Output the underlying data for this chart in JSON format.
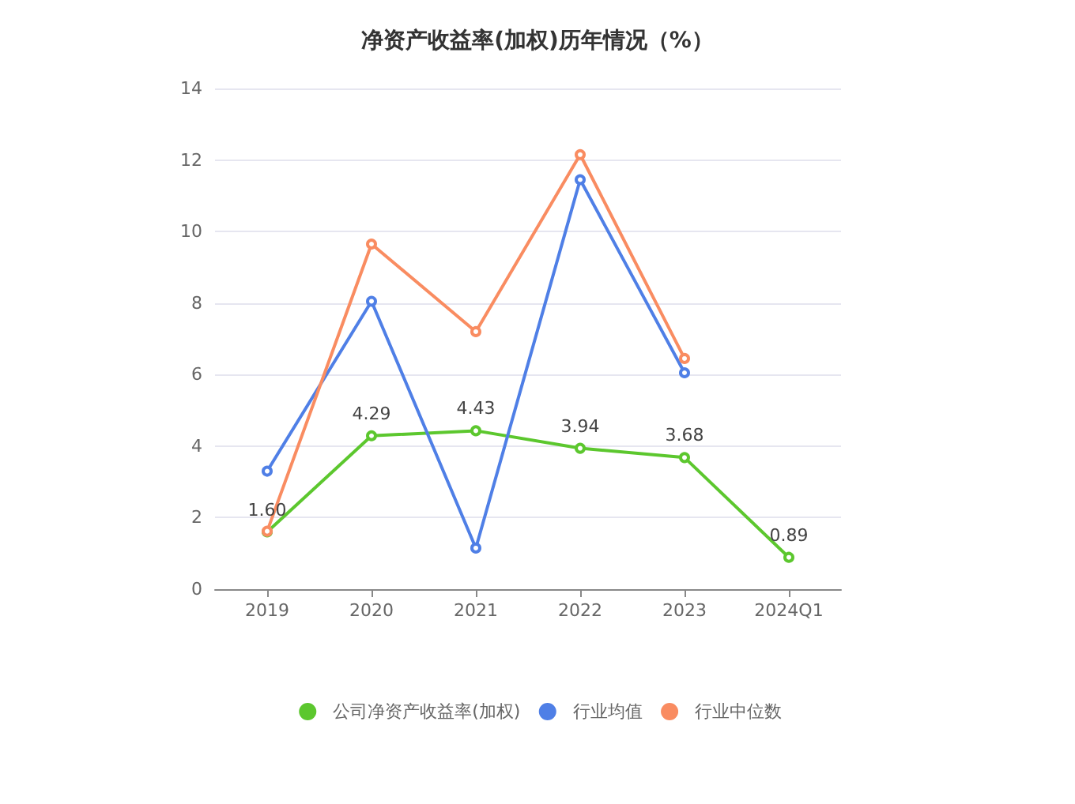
{
  "chart_data": {
    "type": "line",
    "title": "净资产收益率(加权)历年情况（%）",
    "categories": [
      "2019",
      "2020",
      "2021",
      "2022",
      "2023",
      "2024Q1"
    ],
    "series": [
      {
        "name": "公司净资产收益率(加权)",
        "color": "#5cc72e",
        "values": [
          1.6,
          4.29,
          4.43,
          3.94,
          3.68,
          0.89
        ],
        "value_labels": [
          "1.60",
          "4.29",
          "4.43",
          "3.94",
          "3.68",
          "0.89"
        ]
      },
      {
        "name": "行业均值",
        "color": "#4f7fe6",
        "values": [
          3.3,
          8.05,
          1.15,
          11.45,
          6.05,
          null
        ]
      },
      {
        "name": "行业中位数",
        "color": "#f98c61",
        "values": [
          1.62,
          9.65,
          7.2,
          12.15,
          6.45,
          null
        ]
      }
    ],
    "ylim": [
      0,
      14
    ],
    "yticks": [
      0,
      2,
      4,
      6,
      8,
      10,
      12,
      14
    ],
    "grid": "y",
    "legend": "bottom",
    "marker": "circle",
    "line_style": "solid"
  }
}
